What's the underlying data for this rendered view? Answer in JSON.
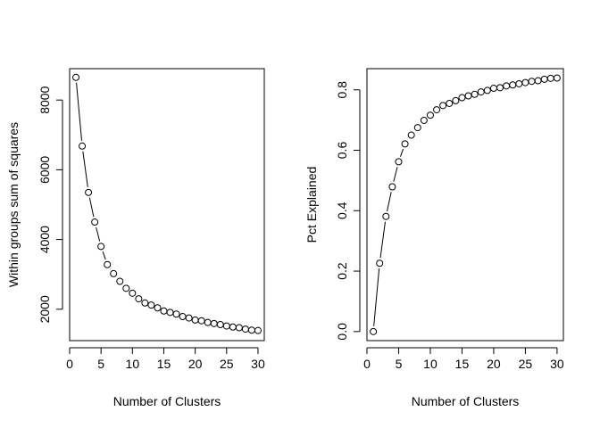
{
  "chart_data": [
    {
      "type": "line",
      "markers": "open-circle",
      "xlabel": "Number of Clusters",
      "ylabel": "Within groups sum of squares",
      "xlim": [
        0,
        31
      ],
      "ylim": [
        1100,
        8900
      ],
      "xticks": [
        0,
        5,
        10,
        15,
        20,
        25,
        30
      ],
      "yticks": [
        2000,
        4000,
        6000,
        8000
      ],
      "grid": false,
      "x": [
        1,
        2,
        3,
        4,
        5,
        6,
        7,
        8,
        9,
        10,
        11,
        12,
        13,
        14,
        15,
        16,
        17,
        18,
        19,
        20,
        21,
        22,
        23,
        24,
        25,
        26,
        27,
        28,
        29,
        30
      ],
      "y": [
        8650,
        6680,
        5350,
        4500,
        3800,
        3280,
        3020,
        2800,
        2600,
        2460,
        2300,
        2180,
        2120,
        2040,
        1950,
        1910,
        1860,
        1790,
        1750,
        1690,
        1670,
        1620,
        1590,
        1560,
        1520,
        1490,
        1470,
        1430,
        1400,
        1390
      ]
    },
    {
      "type": "line",
      "markers": "open-circle",
      "xlabel": "Number of Clusters",
      "ylabel": "Pct Explained",
      "xlim": [
        0,
        31
      ],
      "ylim": [
        -0.03,
        0.87
      ],
      "xticks": [
        0,
        5,
        10,
        15,
        20,
        25,
        30
      ],
      "yticks": [
        0.0,
        0.2,
        0.4,
        0.6,
        0.8
      ],
      "ytick_labels": [
        "0.0",
        "0.2",
        "0.4",
        "0.6",
        "0.8"
      ],
      "grid": false,
      "x": [
        1,
        2,
        3,
        4,
        5,
        6,
        7,
        8,
        9,
        10,
        11,
        12,
        13,
        14,
        15,
        16,
        17,
        18,
        19,
        20,
        21,
        22,
        23,
        24,
        25,
        26,
        27,
        28,
        29,
        30
      ],
      "y": [
        0.0,
        0.226,
        0.381,
        0.479,
        0.562,
        0.621,
        0.65,
        0.675,
        0.699,
        0.716,
        0.734,
        0.748,
        0.755,
        0.764,
        0.774,
        0.78,
        0.785,
        0.793,
        0.798,
        0.805,
        0.807,
        0.813,
        0.816,
        0.82,
        0.824,
        0.828,
        0.83,
        0.835,
        0.838,
        0.839
      ]
    }
  ]
}
